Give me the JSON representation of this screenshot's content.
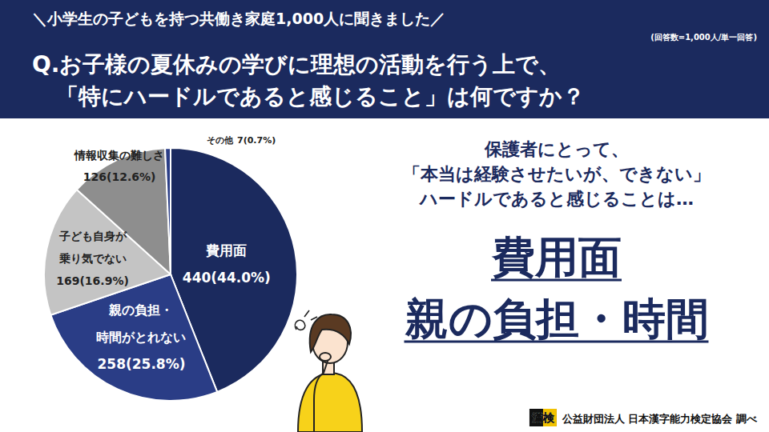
{
  "chart_data": {
    "type": "pie",
    "header": "＼小学生の子どもを持つ共働き家庭1,000人に聞きました／",
    "title": "Q.お子様の夏休みの学びに理想の活動を行う上で、\n「特にハードルであると感じること」は何ですか？",
    "subtitle": "(回答数=1,000人/単一回答)",
    "categories": [
      "費用面",
      "親の負担・\n時間がとれない",
      "子ども自身が\n乗り気でない",
      "情報収集の難しさ",
      "その他"
    ],
    "values": [
      440,
      258,
      169,
      126,
      7
    ],
    "value_labels": [
      "440(44.0%)",
      "258(25.8%)",
      "169(16.9%)",
      "126(12.6%)",
      "7(0.7%)"
    ],
    "colors": [
      "#1b2a5e",
      "#2a3d86",
      "#c4c4c4",
      "#8e8e8e",
      "#2a3d86"
    ],
    "data_labels": true,
    "annotations": [
      "保護者にとって、",
      "「本当は経験させたいが、できない」",
      "ハードルであると感じることは…"
    ],
    "highlights": [
      "費用面",
      "親の負担・時間"
    ],
    "logo": "漢検",
    "source": "公益財団法人 日本漢字能力検定協会 調べ"
  }
}
